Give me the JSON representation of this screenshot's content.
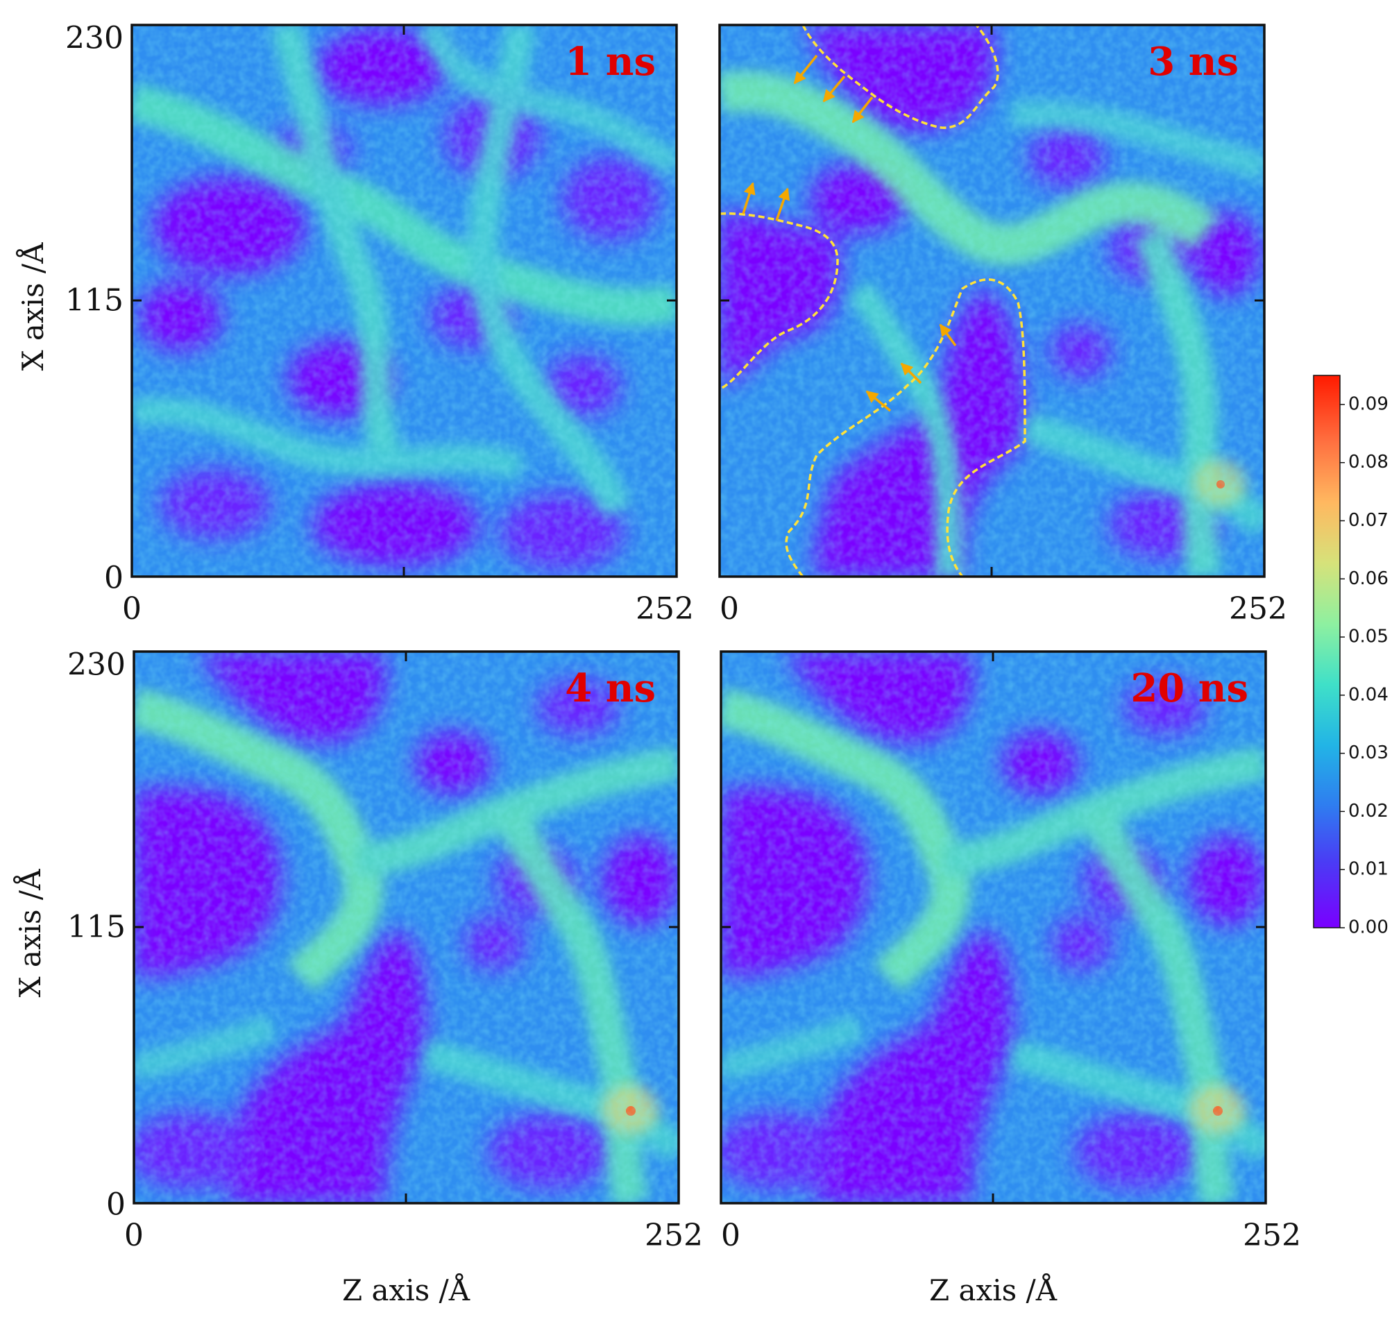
{
  "chart_data": {
    "type": "heatmap",
    "colormap": "rainbow",
    "panels": [
      {
        "label": "1 ns",
        "xlabel": "",
        "ylabel": "X axis /Å",
        "x_ticks": [
          "0",
          "252"
        ],
        "y_ticks": [
          "230",
          "115",
          "0"
        ],
        "annotations": []
      },
      {
        "label": "3 ns",
        "xlabel": "",
        "ylabel": "",
        "x_ticks": [
          "0",
          "252"
        ],
        "y_ticks": [],
        "annotations": [
          "yellow-dashed-boundaries",
          "orange-arrows"
        ]
      },
      {
        "label": "4 ns",
        "xlabel": "Z axis /Å",
        "ylabel": "X axis /Å",
        "x_ticks": [
          "0",
          "252"
        ],
        "y_ticks": [
          "230",
          "115",
          "0"
        ],
        "annotations": []
      },
      {
        "label": "20 ns",
        "xlabel": "Z axis /Å",
        "ylabel": "",
        "x_ticks": [
          "0",
          "252"
        ],
        "y_ticks": [],
        "annotations": []
      }
    ],
    "x_range": [
      0,
      252
    ],
    "y_range": [
      0,
      230
    ],
    "colorbar": {
      "range": [
        0.0,
        0.095
      ],
      "ticks": [
        "0.09",
        "0.08",
        "0.07",
        "0.06",
        "0.05",
        "0.04",
        "0.03",
        "0.02",
        "0.01",
        "0.00"
      ]
    },
    "colors": {
      "low": "#7a00ff",
      "mid": "#33c4e8",
      "high": "#ff1a00",
      "boundary": "#ffe23a",
      "arrow": "#f5a800",
      "label": "#e00000"
    }
  }
}
